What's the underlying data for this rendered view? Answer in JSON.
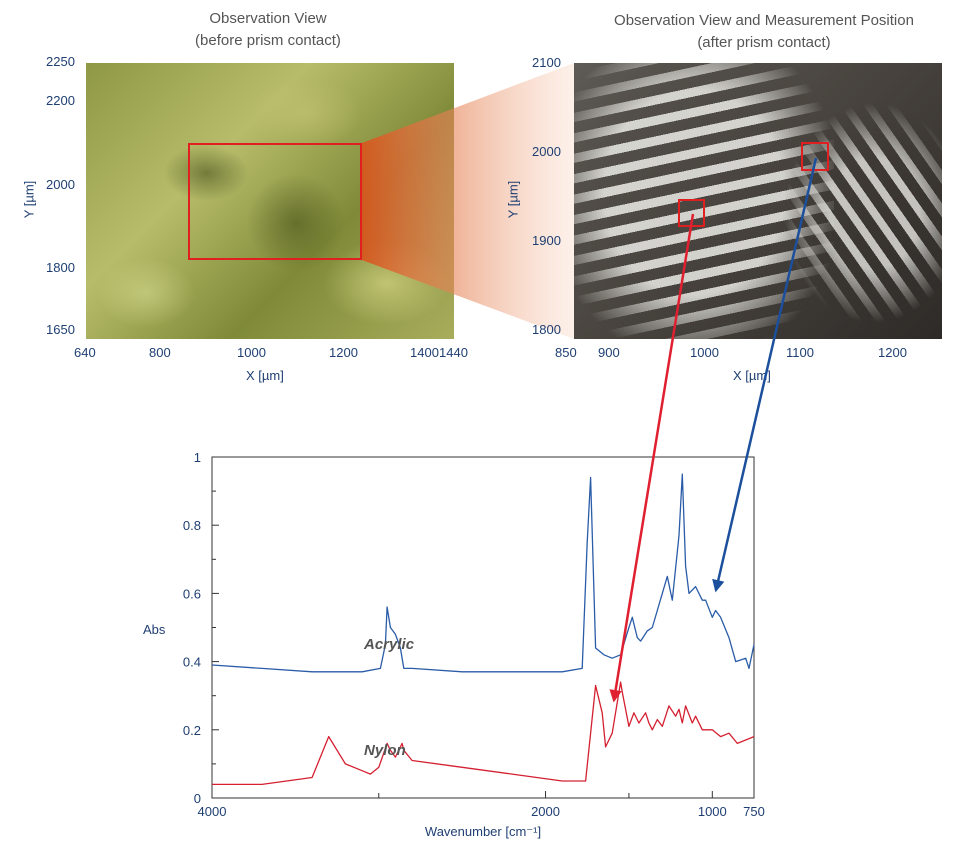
{
  "left_panel": {
    "title_line1": "Observation View",
    "title_line2": "(before prism contact)",
    "ylabel": "Y [µm]",
    "xlabel": "X [µm]",
    "yticks": [
      "2250",
      "2200",
      "2000",
      "1800",
      "1650"
    ],
    "xticks": [
      "640",
      "800",
      "1000",
      "1200",
      "1400",
      "1440"
    ]
  },
  "right_panel": {
    "title_line1": "Observation View and Measurement Position",
    "title_line2": "(after prism contact)",
    "ylabel": "Y [µm]",
    "xlabel": "X [µm]",
    "yticks": [
      "2100",
      "2000",
      "1900",
      "1800"
    ],
    "xticks": [
      "850",
      "900",
      "1000",
      "1100",
      "1200"
    ]
  },
  "colors": {
    "acrylic": "#2a5ca8",
    "nylon": "#d42030",
    "axis_text": "#1f3f73",
    "roi": "#e02020"
  },
  "chart_data": {
    "type": "line",
    "title": "",
    "xlabel": "Wavenumber [cm⁻¹]",
    "ylabel": "Abs",
    "xlim": [
      4000,
      750
    ],
    "ylim": [
      0,
      1
    ],
    "x_ticks": [
      "4000",
      "2000",
      "1000",
      "750"
    ],
    "y_ticks": [
      "0",
      "0.2",
      "0.4",
      "0.6",
      "0.8",
      "1"
    ],
    "series": [
      {
        "name": "Acrylic",
        "color": "#2a5ca8",
        "x": [
          4000,
          3700,
          3400,
          3100,
          2990,
          2960,
          2950,
          2930,
          2900,
          2870,
          2850,
          2800,
          2500,
          2200,
          1900,
          1780,
          1750,
          1730,
          1700,
          1650,
          1600,
          1550,
          1500,
          1480,
          1450,
          1430,
          1390,
          1360,
          1300,
          1270,
          1240,
          1200,
          1180,
          1160,
          1140,
          1100,
          1060,
          1040,
          1000,
          980,
          950,
          900,
          860,
          800,
          780,
          750
        ],
        "y": [
          0.39,
          0.38,
          0.37,
          0.37,
          0.38,
          0.45,
          0.56,
          0.5,
          0.48,
          0.44,
          0.38,
          0.38,
          0.37,
          0.37,
          0.37,
          0.38,
          0.75,
          0.94,
          0.44,
          0.42,
          0.41,
          0.42,
          0.5,
          0.53,
          0.47,
          0.46,
          0.49,
          0.5,
          0.6,
          0.65,
          0.58,
          0.77,
          0.95,
          0.68,
          0.6,
          0.62,
          0.58,
          0.58,
          0.53,
          0.55,
          0.53,
          0.47,
          0.4,
          0.41,
          0.38,
          0.45
        ]
      },
      {
        "name": "Nylon",
        "color": "#d42030",
        "x": [
          4000,
          3700,
          3400,
          3300,
          3200,
          3100,
          3050,
          3000,
          2950,
          2930,
          2900,
          2860,
          2850,
          2800,
          2500,
          2200,
          1900,
          1760,
          1700,
          1660,
          1640,
          1600,
          1550,
          1540,
          1500,
          1470,
          1440,
          1400,
          1380,
          1360,
          1330,
          1300,
          1260,
          1220,
          1200,
          1180,
          1160,
          1120,
          1100,
          1060,
          1000,
          950,
          900,
          850,
          800,
          750
        ],
        "y": [
          0.04,
          0.04,
          0.06,
          0.18,
          0.1,
          0.08,
          0.07,
          0.09,
          0.16,
          0.14,
          0.12,
          0.16,
          0.14,
          0.11,
          0.09,
          0.07,
          0.05,
          0.05,
          0.33,
          0.25,
          0.15,
          0.19,
          0.34,
          0.31,
          0.21,
          0.25,
          0.22,
          0.25,
          0.22,
          0.2,
          0.23,
          0.21,
          0.27,
          0.24,
          0.26,
          0.22,
          0.27,
          0.22,
          0.24,
          0.2,
          0.2,
          0.18,
          0.19,
          0.16,
          0.17,
          0.18
        ]
      }
    ]
  }
}
